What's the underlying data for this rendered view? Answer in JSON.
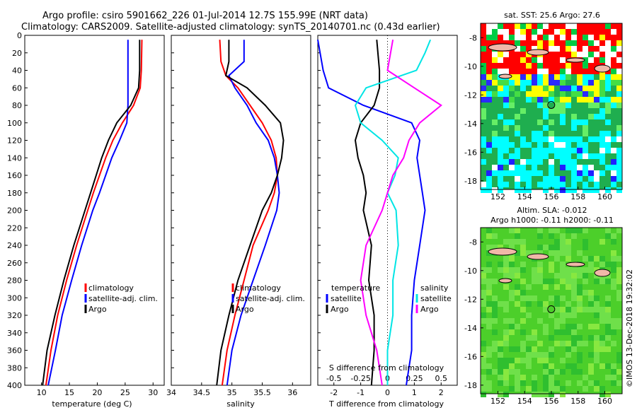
{
  "title_line1": "Argo profile: csiro 5901662_226 01-Jul-2014 12.7S 155.99E (NRT data)",
  "title_line2": "Climatology: CARS2009. Satellite-adjusted climatology: synTS_20140701.nc (0.43d earlier)",
  "map_top_title": "sat. SST: 25.6 Argo: 27.6",
  "map_bottom_title1": "Altim. SLA: -0.012",
  "map_bottom_title2": "Argo h1000: -0.11 h2000: -0.11",
  "watermark": "©IMOS 13-Dec-2018 19:32:02",
  "colors": {
    "climatology": "#ff0000",
    "satellite": "#0000ff",
    "argo": "#000000",
    "s_diff": "#ff00ff",
    "s_sat": "#00e5e5"
  },
  "chart_data": [
    {
      "type": "line",
      "xlabel": "temperature (deg C)",
      "xlim": [
        7,
        32
      ],
      "xticks": [
        10,
        15,
        20,
        25,
        30
      ],
      "ylim": [
        0,
        400
      ],
      "yticks": [
        0,
        20,
        40,
        60,
        80,
        100,
        120,
        140,
        160,
        180,
        200,
        220,
        240,
        260,
        280,
        300,
        320,
        340,
        360,
        380,
        400
      ],
      "legend": [
        "climatology",
        "satellite-adj. clim.",
        "Argo"
      ],
      "series": [
        {
          "name": "climatology",
          "color": "#ff0000",
          "depth": [
            5,
            40,
            60,
            80,
            100,
            120,
            140,
            160,
            180,
            200,
            240,
            280,
            320,
            360,
            400
          ],
          "values": [
            28,
            27.9,
            27.7,
            26.5,
            24.5,
            22.8,
            21.5,
            20.4,
            19.3,
            18.3,
            16.3,
            14.5,
            12.9,
            11.7,
            10.8
          ]
        },
        {
          "name": "satellite-adj. clim.",
          "color": "#0000ff",
          "depth": [
            5,
            40,
            60,
            80,
            100,
            120,
            140,
            160,
            180,
            200,
            240,
            280,
            320,
            360,
            400
          ],
          "values": [
            25.5,
            25.5,
            25.5,
            25.5,
            25.3,
            24.0,
            22.6,
            21.5,
            20.4,
            19.2,
            17.2,
            15.4,
            13.7,
            12.5,
            11.2
          ]
        },
        {
          "name": "Argo",
          "color": "#000000",
          "depth": [
            5,
            40,
            60,
            80,
            100,
            120,
            140,
            160,
            180,
            200,
            240,
            280,
            320,
            360,
            400
          ],
          "values": [
            27.6,
            27.6,
            27.4,
            26.0,
            23.5,
            22.0,
            20.8,
            19.8,
            18.8,
            17.8,
            15.8,
            14.0,
            12.4,
            11.0,
            10.2
          ]
        }
      ]
    },
    {
      "type": "line",
      "xlabel": "salinity",
      "xlim": [
        34,
        36.3
      ],
      "xticks": [
        34,
        34.5,
        35,
        35.5,
        36
      ],
      "ylim": [
        0,
        400
      ],
      "legend": [
        "climatology",
        "satellite-adj. clim.",
        "Argo"
      ],
      "series": [
        {
          "name": "climatology",
          "color": "#ff0000",
          "depth": [
            5,
            30,
            46,
            60,
            80,
            100,
            120,
            140,
            160,
            180,
            200,
            240,
            280,
            320,
            360,
            400
          ],
          "values": [
            34.8,
            34.82,
            34.9,
            35.1,
            35.3,
            35.5,
            35.65,
            35.73,
            35.75,
            35.7,
            35.6,
            35.35,
            35.2,
            35.05,
            34.92,
            34.84
          ]
        },
        {
          "name": "satellite-adj. clim.",
          "color": "#0000ff",
          "depth": [
            5,
            30,
            46,
            60,
            80,
            100,
            120,
            140,
            160,
            180,
            200,
            240,
            280,
            320,
            360,
            400
          ],
          "values": [
            35.2,
            35.2,
            34.95,
            35.05,
            35.25,
            35.4,
            35.6,
            35.7,
            35.75,
            35.78,
            35.74,
            35.55,
            35.35,
            35.15,
            35.0,
            34.92
          ]
        },
        {
          "name": "Argo",
          "color": "#000000",
          "depth": [
            5,
            30,
            46,
            60,
            80,
            100,
            120,
            140,
            160,
            180,
            200,
            240,
            280,
            320,
            360,
            400
          ],
          "values": [
            34.95,
            34.95,
            34.9,
            35.25,
            35.55,
            35.8,
            35.85,
            35.82,
            35.75,
            35.65,
            35.5,
            35.3,
            35.1,
            34.95,
            34.82,
            34.75
          ]
        }
      ]
    },
    {
      "type": "line",
      "xlabel": "T difference from climatology",
      "xlabel_top": "S difference from climatology",
      "xlim": [
        -2.6,
        2.6
      ],
      "xticks": [
        -2,
        -1,
        0,
        1,
        2
      ],
      "xticks_top": [
        -0.5,
        -0.25,
        0,
        0.25,
        0.5
      ],
      "ylim": [
        0,
        400
      ],
      "legend_left_title": "temperature",
      "legend_left": [
        "satellite",
        "Argo"
      ],
      "legend_right_title": "salinity",
      "legend_right": [
        "satellite",
        "Argo"
      ],
      "series": [
        {
          "name": "T satellite",
          "color": "#0000ff",
          "depth": [
            5,
            40,
            60,
            80,
            100,
            120,
            140,
            160,
            180,
            200,
            240,
            280,
            320,
            360,
            400
          ],
          "values": [
            -2.6,
            -2.4,
            -2.2,
            -0.9,
            0.9,
            1.2,
            1.1,
            1.2,
            1.3,
            1.4,
            1.2,
            1.0,
            0.9,
            0.9,
            0.7
          ]
        },
        {
          "name": "T Argo",
          "color": "#000000",
          "depth": [
            5,
            40,
            60,
            80,
            100,
            120,
            140,
            160,
            180,
            200,
            240,
            280,
            320,
            360,
            400
          ],
          "values": [
            -0.4,
            -0.3,
            -0.3,
            -0.5,
            -1.0,
            -1.2,
            -1.1,
            -0.9,
            -0.8,
            -0.9,
            -0.6,
            -0.7,
            -0.5,
            -0.5,
            -0.6
          ]
        },
        {
          "name": "S satellite",
          "color": "#00e5e5",
          "depth": [
            5,
            20,
            40,
            60,
            80,
            100,
            120,
            140,
            160,
            180,
            200,
            240,
            280,
            320,
            360,
            400
          ],
          "values": [
            0.4,
            0.35,
            0.27,
            -0.2,
            -0.3,
            -0.25,
            -0.05,
            0.1,
            0.07,
            0.0,
            0.08,
            0.1,
            0.05,
            0.05,
            0.0,
            0.0
          ]
        },
        {
          "name": "S Argo",
          "color": "#ff00ff",
          "depth": [
            5,
            40,
            60,
            80,
            100,
            120,
            140,
            160,
            180,
            200,
            240,
            280,
            320,
            360,
            400
          ],
          "values": [
            0.05,
            0.0,
            0.25,
            0.5,
            0.3,
            0.2,
            0.15,
            0.05,
            0.0,
            -0.05,
            -0.2,
            -0.25,
            -0.2,
            -0.1,
            -0.05
          ]
        }
      ]
    },
    {
      "type": "heatmap",
      "title": "sat. SST: 25.6 Argo: 27.6",
      "xticks": [
        "152",
        "154",
        "156",
        "158",
        "160"
      ],
      "yticks": [
        "-8",
        "-10",
        "-12",
        "-14",
        "-16",
        "-18"
      ],
      "marker": {
        "lon": 155.99,
        "lat": -12.7
      }
    },
    {
      "type": "heatmap",
      "title": "Altim. SLA: -0.012",
      "xticks": [
        "152",
        "154",
        "156",
        "158",
        "160"
      ],
      "yticks": [
        "-8",
        "-10",
        "-12",
        "-14",
        "-16",
        "-18"
      ],
      "marker": {
        "lon": 155.99,
        "lat": -12.7
      }
    }
  ]
}
